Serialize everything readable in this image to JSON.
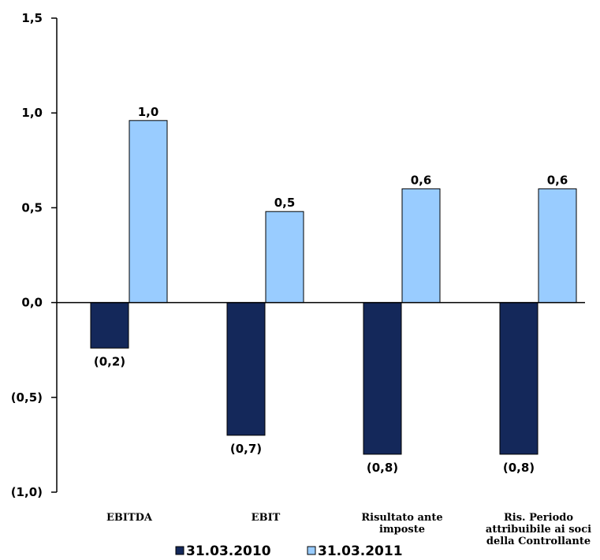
{
  "chart_data": {
    "type": "bar",
    "categories": [
      [
        "EBITDA"
      ],
      [
        "EBIT"
      ],
      [
        "Risultato ante",
        "imposte"
      ],
      [
        "Ris. Periodo",
        "attribuibile ai soci",
        "della Controllante"
      ]
    ],
    "series": [
      {
        "name": "31.03.2010",
        "color": "#14285a",
        "values": [
          -0.24,
          -0.7,
          -0.8,
          -0.8
        ],
        "labels": [
          "(0,2)",
          "(0,7)",
          "(0,8)",
          "(0,8)"
        ]
      },
      {
        "name": "31.03.2011",
        "color": "#99ccff",
        "values": [
          0.96,
          0.48,
          0.6,
          0.6
        ],
        "labels": [
          "1,0",
          "0,5",
          "0,6",
          "0,6"
        ]
      }
    ],
    "ylim": [
      -1.0,
      1.5
    ],
    "yticks": [
      1.5,
      1.0,
      0.5,
      0.0,
      -0.5,
      -1.0
    ],
    "ytick_labels": [
      "1,5",
      "1,0",
      "0,5",
      "0,0",
      "(0,5)",
      "(1,0)"
    ],
    "grid": false,
    "legend_position": "bottom"
  }
}
